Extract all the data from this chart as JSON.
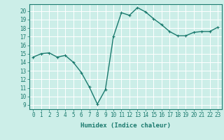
{
  "x": [
    0,
    1,
    2,
    3,
    4,
    5,
    6,
    7,
    8,
    9,
    10,
    11,
    12,
    13,
    14,
    15,
    16,
    17,
    18,
    19,
    20,
    21,
    22,
    23
  ],
  "y": [
    14.6,
    15.0,
    15.1,
    14.6,
    14.8,
    14.0,
    12.8,
    11.1,
    9.1,
    10.8,
    17.0,
    19.8,
    19.5,
    20.4,
    19.9,
    19.1,
    18.4,
    17.6,
    17.1,
    17.1,
    17.5,
    17.6,
    17.6,
    18.1
  ],
  "line_color": "#1a7a6e",
  "marker": "+",
  "marker_size": 3,
  "bg_color": "#cceee8",
  "grid_color": "#ffffff",
  "xlabel": "Humidex (Indice chaleur)",
  "xlim": [
    -0.5,
    23.5
  ],
  "ylim": [
    8.5,
    20.8
  ],
  "yticks": [
    9,
    10,
    11,
    12,
    13,
    14,
    15,
    16,
    17,
    18,
    19,
    20
  ],
  "xticks": [
    0,
    1,
    2,
    3,
    4,
    5,
    6,
    7,
    8,
    9,
    10,
    11,
    12,
    13,
    14,
    15,
    16,
    17,
    18,
    19,
    20,
    21,
    22,
    23
  ],
  "tick_label_fontsize": 5.5,
  "xlabel_fontsize": 6.5,
  "line_width": 1.0,
  "spine_color": "#1a7a6e"
}
